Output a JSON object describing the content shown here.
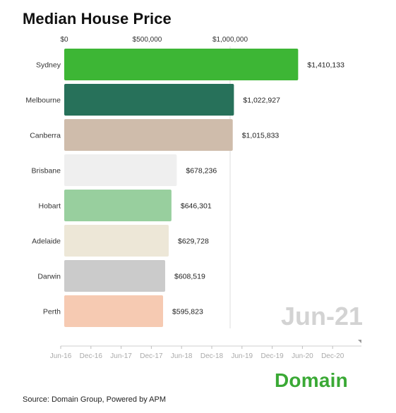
{
  "chart_data": {
    "type": "bar",
    "title": "Median House Price",
    "orientation": "horizontal",
    "categories": [
      "Sydney",
      "Melbourne",
      "Canberra",
      "Brisbane",
      "Hobart",
      "Adelaide",
      "Darwin",
      "Perth"
    ],
    "values": [
      1410133,
      1022927,
      1015833,
      678236,
      646301,
      629728,
      608519,
      595823
    ],
    "value_labels": [
      "$1,410,133",
      "$1,022,927",
      "$1,015,833",
      "$678,236",
      "$646,301",
      "$629,728",
      "$608,519",
      "$595,823"
    ],
    "bar_colors": [
      "#3db635",
      "#27715a",
      "#cfbcab",
      "#efefef",
      "#98cf9e",
      "#ede7d7",
      "#cbcbcb",
      "#f6cab2"
    ],
    "xlim": [
      0,
      1400000
    ],
    "x_ticks": [
      0,
      500000,
      1000000
    ],
    "x_tick_labels": [
      "$0",
      "$500,000",
      "$1,000,000"
    ],
    "reference_line_value": 1000000,
    "current_period": "Jun-21",
    "timeline_labels": [
      "Jun-16",
      "Dec-16",
      "Jun-17",
      "Dec-17",
      "Jun-18",
      "Dec-18",
      "Jun-19",
      "Dec-19",
      "Jun-20",
      "Dec-20"
    ]
  },
  "brand": "Domain",
  "source": "Source: Domain Group, Powered by APM"
}
